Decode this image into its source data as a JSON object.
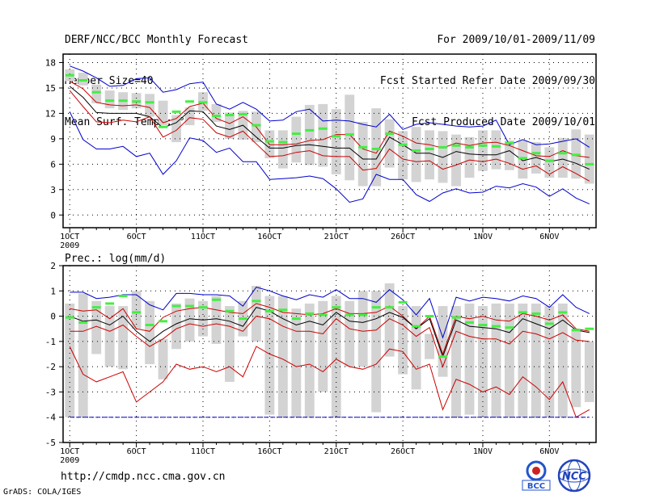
{
  "header": {
    "left": [
      "DERF/NCC/BCC Monthly Forecast",
      "Member Size=40",
      "Mean Surf. Temp.: °C"
    ],
    "right": [
      "For 2009/10/01-2009/11/09",
      "Fcst Started Refer Date 2009/09/30",
      "Fcst Produced Date 2009/10/01"
    ]
  },
  "footer": {
    "url": "http://cmdp.ncc.cma.gov.cn",
    "credit": "GrADS: COLA/IGES"
  },
  "logos": {
    "bcc": "BCC",
    "ncc": "NCC"
  },
  "colors": {
    "max_min": "#0000cc",
    "spread": "#cc0000",
    "mean": "#000000",
    "obs": "#44ee44",
    "box": "#d3d3d3",
    "grid": "#000000"
  },
  "chart_data": [
    {
      "id": "temp",
      "type": "box-line",
      "title": "Mean Surf. Temp.: °C",
      "xlabel": "",
      "ylabel": "",
      "ylim": [
        -1.5,
        19
      ],
      "yticks": [
        0,
        3,
        6,
        9,
        12,
        15,
        18
      ],
      "xlim": [
        0.5,
        40.5
      ],
      "xticks": [
        {
          "day": 1,
          "label": "1OCT",
          "sub": "2009"
        },
        {
          "day": 6,
          "label": "6OCT"
        },
        {
          "day": 11,
          "label": "11OCT"
        },
        {
          "day": 16,
          "label": "16OCT"
        },
        {
          "day": 21,
          "label": "21OCT"
        },
        {
          "day": 26,
          "label": "26OCT"
        },
        {
          "day": 32,
          "label": "1NOV"
        },
        {
          "day": 37,
          "label": "6NOV"
        }
      ],
      "box_low": [
        15.8,
        15.3,
        13.2,
        12.6,
        12.4,
        12.6,
        11.6,
        10.6,
        8.6,
        10.6,
        12.3,
        11.0,
        9.0,
        8.9,
        8.6,
        6.7,
        5.5,
        6.2,
        5.9,
        5.7,
        4.8,
        4.1,
        3.4,
        3.4,
        5.6,
        4.2,
        3.9,
        4.2,
        3.8,
        3.4,
        4.4,
        5.2,
        5.4,
        5.3,
        4.3,
        4.9,
        4.4,
        4.4,
        4.3,
        3.7
      ],
      "box_high": [
        17.2,
        16.8,
        15.4,
        14.7,
        14.5,
        14.4,
        14.3,
        13.5,
        11.8,
        12.7,
        14.5,
        13.1,
        12.1,
        12.3,
        12.2,
        10.0,
        10.0,
        11.6,
        13.0,
        13.1,
        12.5,
        14.2,
        11.0,
        12.6,
        11.3,
        9.9,
        10.4,
        10.0,
        9.9,
        9.5,
        9.2,
        10.0,
        10.0,
        8.8,
        8.8,
        8.6,
        8.0,
        9.1,
        10.1,
        9.5
      ],
      "obs": [
        16.5,
        15.9,
        14.5,
        13.5,
        13.5,
        13.4,
        13.3,
        10.4,
        12.2,
        13.4,
        13.3,
        11.7,
        11.8,
        11.9,
        10.6,
        8.7,
        8.6,
        9.6,
        10.0,
        10.2,
        9.3,
        9.5,
        8.0,
        7.8,
        9.6,
        8.3,
        7.6,
        7.8,
        8.0,
        8.2,
        8.0,
        8.2,
        8.1,
        8.5,
        6.7,
        7.3,
        6.4,
        7.3,
        7.1,
        6.0
      ],
      "series": [
        {
          "name": "max",
          "color": "#0000cc",
          "values": [
            17.6,
            17.0,
            16.2,
            15.2,
            15.3,
            16.1,
            16.2,
            14.5,
            14.8,
            15.5,
            15.7,
            13.1,
            12.5,
            13.3,
            12.5,
            11.1,
            11.2,
            12.2,
            12.5,
            11.1,
            11.2,
            11.1,
            10.7,
            10.4,
            11.9,
            10.1,
            10.7,
            10.9,
            10.7,
            10.5,
            10.4,
            10.5,
            11.2,
            8.3,
            8.9,
            8.3,
            8.4,
            8.7,
            9.0,
            8.0
          ]
        },
        {
          "name": "upper",
          "color": "#cc0000",
          "values": [
            15.8,
            14.9,
            13.3,
            13.0,
            12.9,
            13.0,
            12.7,
            10.9,
            11.4,
            12.8,
            13.2,
            11.4,
            10.8,
            11.6,
            10.4,
            8.3,
            8.3,
            8.4,
            8.8,
            8.9,
            9.5,
            9.5,
            7.8,
            7.3,
            9.9,
            9.3,
            8.5,
            8.3,
            7.9,
            8.5,
            8.2,
            8.5,
            8.6,
            8.2,
            7.6,
            7.0,
            6.9,
            7.6,
            7.0,
            6.8
          ]
        },
        {
          "name": "mean",
          "color": "#000000",
          "values": [
            15.2,
            13.9,
            12.1,
            12.0,
            12.0,
            12.0,
            11.6,
            10.3,
            10.9,
            12.3,
            12.2,
            10.5,
            10.1,
            10.6,
            9.2,
            7.9,
            7.9,
            8.2,
            8.3,
            8.1,
            7.9,
            7.9,
            6.6,
            6.6,
            9.2,
            8.3,
            7.3,
            7.3,
            6.8,
            7.5,
            7.2,
            7.1,
            7.1,
            7.6,
            6.4,
            6.8,
            6.3,
            6.6,
            6.1,
            5.4
          ]
        },
        {
          "name": "lower",
          "color": "#cc0000",
          "values": [
            14.7,
            12.8,
            11.0,
            10.9,
            11.2,
            11.0,
            11.6,
            9.2,
            10.0,
            11.5,
            11.3,
            9.7,
            9.2,
            9.9,
            8.4,
            6.9,
            7.0,
            7.4,
            7.6,
            7.0,
            6.9,
            6.9,
            5.3,
            5.5,
            7.8,
            6.6,
            6.3,
            6.4,
            5.4,
            5.9,
            6.5,
            6.3,
            6.6,
            6.1,
            5.4,
            5.8,
            4.8,
            5.7,
            4.9,
            4.0
          ]
        },
        {
          "name": "min",
          "color": "#0000cc",
          "values": [
            12.2,
            8.9,
            7.8,
            7.8,
            8.1,
            6.9,
            7.3,
            4.8,
            6.4,
            9.1,
            8.8,
            7.4,
            7.9,
            6.3,
            6.3,
            4.2,
            4.3,
            4.4,
            4.6,
            4.3,
            3.1,
            1.5,
            1.9,
            4.8,
            4.2,
            4.2,
            2.4,
            1.6,
            2.6,
            3.1,
            2.6,
            2.7,
            3.4,
            3.2,
            3.7,
            3.3,
            2.2,
            3.1,
            2.0,
            1.3
          ]
        }
      ]
    },
    {
      "id": "prec",
      "type": "box-line",
      "title": "Prec.: log(mm/d)",
      "xlabel": "",
      "ylabel": "",
      "ylim": [
        -5,
        2
      ],
      "yticks": [
        -5,
        -4,
        -3,
        -2,
        -1,
        0,
        1,
        2
      ],
      "xlim": [
        0.5,
        40.5
      ],
      "xticks": [
        {
          "day": 1,
          "label": "1OCT",
          "sub": "2009"
        },
        {
          "day": 6,
          "label": "6OCT"
        },
        {
          "day": 11,
          "label": "11OCT"
        },
        {
          "day": 16,
          "label": "16OCT"
        },
        {
          "day": 21,
          "label": "21OCT"
        },
        {
          "day": 26,
          "label": "26OCT"
        },
        {
          "day": 32,
          "label": "1NOV"
        },
        {
          "day": 37,
          "label": "6NOV"
        }
      ],
      "box_low": [
        -4.0,
        -4.0,
        -1.5,
        -2.0,
        -2.1,
        -0.5,
        -1.9,
        -2.5,
        -1.3,
        -1.0,
        -0.8,
        -1.1,
        -2.6,
        -0.8,
        -1.0,
        -3.9,
        -4.0,
        -4.0,
        -4.0,
        -3.0,
        -4.0,
        -2.0,
        -2.0,
        -3.8,
        -1.6,
        -2.3,
        -2.9,
        -1.7,
        -2.4,
        -4.0,
        -3.9,
        -4.0,
        -4.0,
        -4.0,
        -4.0,
        -4.0,
        -4.0,
        -4.0,
        -3.6,
        -3.4
      ],
      "box_high": [
        0.5,
        0.9,
        0.6,
        0.4,
        0.4,
        1.0,
        0.6,
        -0.9,
        0.5,
        0.7,
        0.6,
        0.8,
        0.4,
        0.6,
        1.2,
        0.8,
        0.8,
        0.3,
        0.5,
        0.6,
        0.8,
        0.6,
        1.0,
        1.0,
        1.3,
        0.4,
        0.4,
        -0.7,
        0.4,
        0.4,
        0.5,
        0.4,
        0.5,
        0.5,
        0.5,
        0.5,
        0.4,
        0.5,
        -0.5,
        -1.0
      ],
      "obs": [
        -0.05,
        -0.25,
        0.35,
        0.5,
        0.8,
        0.15,
        -0.35,
        -0.2,
        0.4,
        0.4,
        0.35,
        0.65,
        0.2,
        -0.1,
        0.6,
        0.2,
        0.25,
        -0.1,
        0.1,
        0.05,
        0.35,
        0.05,
        0.05,
        0.35,
        0.35,
        0.55,
        -0.4,
        0.0,
        -1.6,
        -0.05,
        -0.25,
        -0.35,
        -0.4,
        -0.45,
        0.15,
        0.1,
        -0.3,
        0.15,
        -0.55,
        -0.5
      ],
      "series": [
        {
          "name": "max",
          "color": "#0000cc",
          "values": [
            0.95,
            0.95,
            0.7,
            0.75,
            0.85,
            0.85,
            0.45,
            0.25,
            0.9,
            0.9,
            0.85,
            0.85,
            0.8,
            0.4,
            1.15,
            1.0,
            0.8,
            0.65,
            0.85,
            0.75,
            1.05,
            0.7,
            0.7,
            0.55,
            1.05,
            0.65,
            0.05,
            0.7,
            -0.85,
            0.75,
            0.6,
            0.75,
            0.7,
            0.6,
            0.8,
            0.7,
            0.35,
            0.85,
            0.35,
            0.1
          ]
        },
        {
          "name": "upper",
          "color": "#cc0000",
          "values": [
            0.3,
            0.2,
            0.25,
            -0.1,
            0.3,
            -0.5,
            -0.6,
            -0.05,
            0.2,
            0.3,
            0.35,
            0.25,
            0.15,
            0.1,
            0.5,
            0.35,
            0.15,
            0.1,
            0.05,
            0.1,
            0.3,
            0.1,
            0.1,
            0.15,
            0.4,
            0.0,
            -0.5,
            0.0,
            -1.5,
            0.0,
            -0.1,
            0.0,
            -0.15,
            -0.2,
            0.1,
            0.0,
            -0.15,
            0.05,
            -0.5,
            -0.6
          ]
        },
        {
          "name": "mean",
          "color": "#000000",
          "values": [
            0.0,
            -0.2,
            -0.15,
            -0.35,
            0.0,
            -0.6,
            -1.0,
            -0.6,
            -0.3,
            -0.1,
            -0.15,
            -0.1,
            -0.2,
            -0.4,
            0.35,
            0.2,
            -0.1,
            -0.35,
            -0.2,
            -0.35,
            0.15,
            -0.2,
            -0.25,
            -0.1,
            0.15,
            -0.05,
            -0.5,
            -0.1,
            -1.6,
            -0.15,
            -0.4,
            -0.45,
            -0.5,
            -0.65,
            -0.1,
            -0.3,
            -0.5,
            -0.15,
            -0.55,
            -0.65
          ]
        },
        {
          "name": "lower",
          "color": "#cc0000",
          "values": [
            -0.6,
            -0.6,
            -0.4,
            -0.6,
            -0.35,
            -0.8,
            -1.2,
            -0.9,
            -0.5,
            -0.3,
            -0.4,
            -0.3,
            -0.4,
            -0.6,
            0.0,
            -0.1,
            -0.4,
            -0.6,
            -0.6,
            -0.7,
            -0.1,
            -0.5,
            -0.6,
            -0.55,
            -0.1,
            -0.35,
            -0.8,
            -0.45,
            -2.0,
            -0.6,
            -0.8,
            -0.9,
            -0.9,
            -1.1,
            -0.6,
            -0.7,
            -0.9,
            -0.65,
            -0.95,
            -1.0
          ]
        },
        {
          "name": "min",
          "color": "#cc0000",
          "values": [
            -1.2,
            -2.3,
            -2.6,
            -2.4,
            -2.2,
            -3.4,
            -3.0,
            -2.6,
            -1.9,
            -2.1,
            -2.0,
            -2.2,
            -2.0,
            -2.4,
            -1.2,
            -1.5,
            -1.7,
            -2.0,
            -1.9,
            -2.2,
            -1.7,
            -2.0,
            -2.1,
            -1.9,
            -1.3,
            -1.4,
            -2.1,
            -1.9,
            -3.7,
            -2.5,
            -2.7,
            -3.0,
            -2.8,
            -3.1,
            -2.4,
            -2.8,
            -3.3,
            -2.6,
            -4.0,
            -3.7
          ]
        },
        {
          "name": "floor",
          "color": "#0000cc",
          "values": [
            -4,
            -4,
            -4,
            -4,
            -4,
            -4,
            -4,
            -4,
            -4,
            -4,
            -4,
            -4,
            -4,
            -4,
            -4,
            -4,
            -4,
            -4,
            -4,
            -4,
            -4,
            -4,
            -4,
            -4,
            -4,
            -4,
            -4,
            -4,
            -4,
            -4,
            -4,
            -4,
            -4,
            -4,
            -4,
            -4,
            -4,
            -4,
            -4,
            -4
          ]
        }
      ]
    }
  ]
}
